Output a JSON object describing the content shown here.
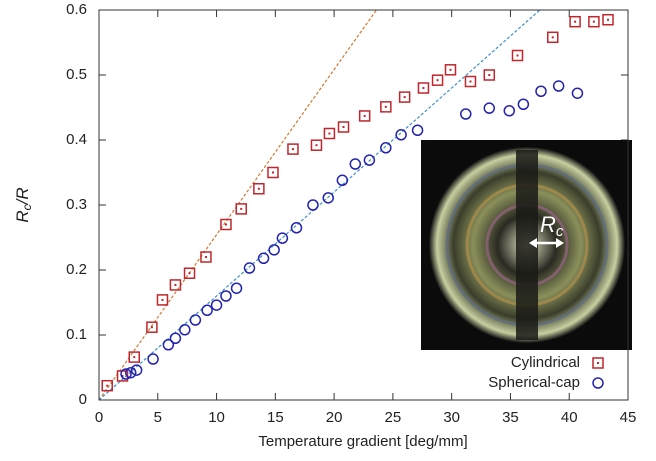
{
  "chart_data": {
    "type": "scatter",
    "xlabel": "Temperature gradient [deg/mm]",
    "ylabel": [
      "R",
      "c",
      "/R"
    ],
    "xlim": [
      0,
      45
    ],
    "ylim": [
      0,
      0.6
    ],
    "xticks": [
      0,
      5,
      10,
      15,
      20,
      25,
      30,
      35,
      40,
      45
    ],
    "yticks": [
      0,
      0.1,
      0.2,
      0.3,
      0.4,
      0.5,
      0.6
    ],
    "legend": "bottom-right",
    "series": [
      {
        "name": "Cylindrical",
        "color": "#c0262c",
        "marker": "square",
        "x": [
          0.7,
          2.0,
          3.0,
          4.5,
          5.4,
          6.5,
          7.7,
          9.1,
          10.8,
          12.1,
          13.6,
          14.8,
          16.5,
          18.5,
          19.6,
          20.8,
          22.6,
          24.4,
          26.0,
          27.6,
          28.8,
          29.9,
          31.6,
          33.2,
          35.6,
          38.6,
          40.5,
          42.1,
          43.3
        ],
        "values": [
          0.022,
          0.037,
          0.066,
          0.112,
          0.154,
          0.177,
          0.195,
          0.22,
          0.27,
          0.294,
          0.325,
          0.35,
          0.386,
          0.392,
          0.41,
          0.42,
          0.437,
          0.451,
          0.466,
          0.48,
          0.492,
          0.508,
          0.49,
          0.5,
          0.53,
          0.558,
          0.582,
          0.582,
          0.585
        ]
      },
      {
        "name": "Spherical-cap",
        "color": "#2323b0",
        "marker": "circle",
        "x": [
          2.3,
          2.7,
          3.2,
          4.6,
          5.9,
          6.5,
          7.3,
          8.2,
          9.2,
          10.0,
          10.8,
          11.7,
          12.8,
          14.0,
          14.9,
          15.6,
          16.8,
          18.2,
          19.5,
          20.7,
          21.8,
          23.0,
          24.4,
          25.7,
          27.1,
          31.2,
          33.2,
          34.9,
          36.1,
          37.6,
          39.1,
          40.7
        ],
        "values": [
          0.04,
          0.042,
          0.046,
          0.063,
          0.085,
          0.095,
          0.108,
          0.123,
          0.138,
          0.146,
          0.16,
          0.172,
          0.203,
          0.218,
          0.231,
          0.249,
          0.265,
          0.3,
          0.311,
          0.338,
          0.363,
          0.369,
          0.388,
          0.408,
          0.415,
          0.44,
          0.449,
          0.445,
          0.455,
          0.475,
          0.483,
          0.472
        ]
      }
    ],
    "fits": [
      {
        "color": "#d2772f",
        "x": [
          0,
          23.6
        ],
        "values": [
          0,
          0.6
        ]
      },
      {
        "color": "#3c8fd2",
        "x": [
          0,
          37.5
        ],
        "values": [
          0,
          0.6
        ]
      }
    ],
    "inset_label": [
      "R",
      "c"
    ]
  }
}
